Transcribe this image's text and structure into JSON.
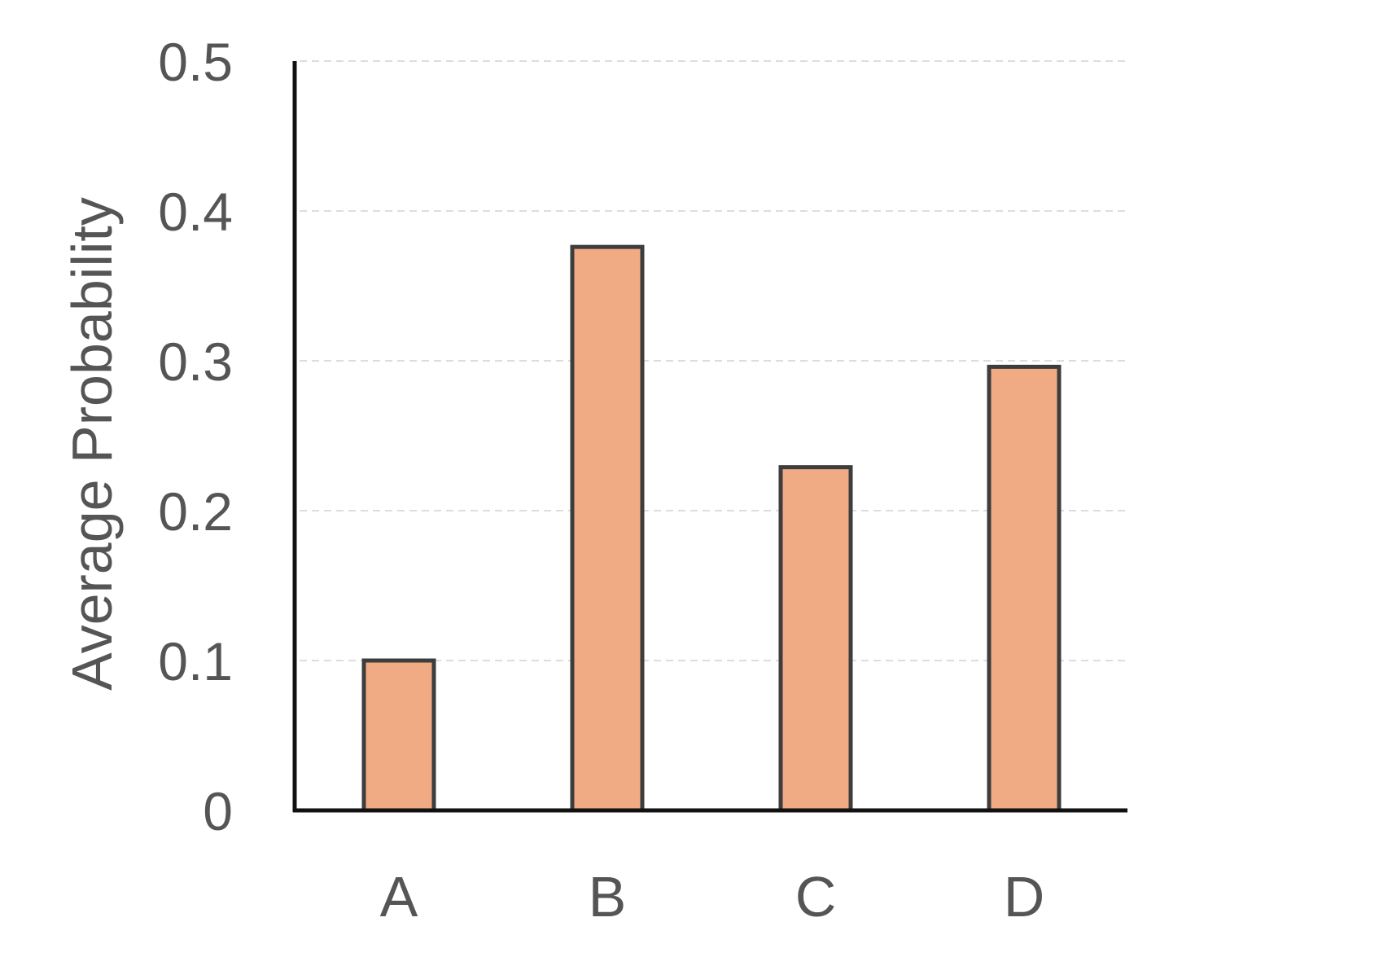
{
  "chart_data": {
    "type": "bar",
    "title": "",
    "xlabel": "",
    "ylabel": "Average Probability",
    "categories": [
      "A",
      "B",
      "C",
      "D"
    ],
    "values": [
      0.1,
      0.376,
      0.229,
      0.296
    ],
    "ylim": [
      0,
      0.5
    ],
    "yticks": [
      0,
      0.1,
      0.2,
      0.3,
      0.4,
      0.5
    ],
    "ytick_labels": [
      "0",
      "0.1",
      "0.2",
      "0.3",
      "0.4",
      "0.5"
    ],
    "grid": "horizontal dashed",
    "legend": "none"
  },
  "colors": {
    "bar_fill": "#F0AB85",
    "bar_edge": "#3D3D3D",
    "axis_line": "#111111",
    "grid_line": "#DDDDDD",
    "text": "#555555"
  }
}
